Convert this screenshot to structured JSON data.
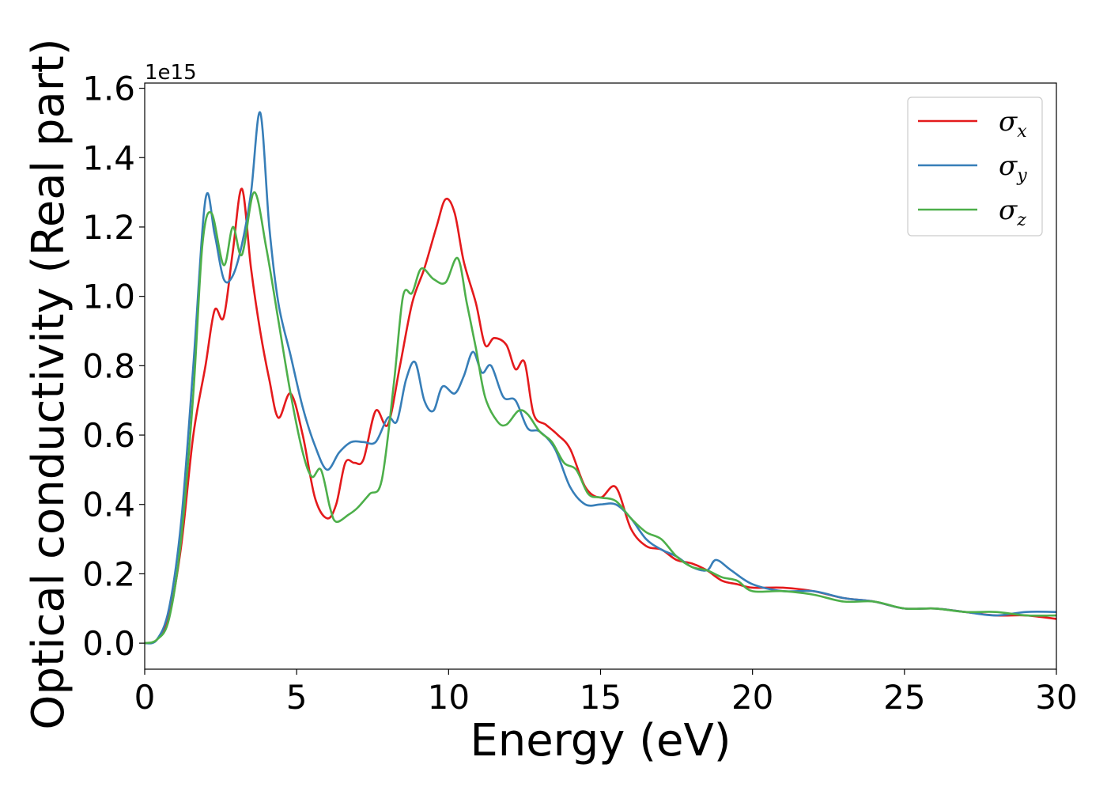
{
  "chart_data": {
    "type": "line",
    "xlabel": "Energy (eV)",
    "ylabel": "Optical conductivity (Real part)",
    "y_offset_text": "1e15",
    "xlim": [
      0,
      30
    ],
    "ylim": [
      -0.075,
      1.615
    ],
    "y_scale_factor": 1000000000000000.0,
    "grid": false,
    "legend_position": "top-right",
    "xticks": [
      0,
      5,
      10,
      15,
      20,
      25,
      30
    ],
    "xtick_labels": [
      "0",
      "5",
      "10",
      "15",
      "20",
      "25",
      "30"
    ],
    "yticks": [
      0.0,
      0.2,
      0.4,
      0.6,
      0.8,
      1.0,
      1.2,
      1.4,
      1.6
    ],
    "ytick_labels": [
      "0.0",
      "0.2",
      "0.4",
      "0.6",
      "0.8",
      "1.0",
      "1.2",
      "1.4",
      "1.6"
    ],
    "series": [
      {
        "name": "σ_x",
        "legend_base": "σ",
        "legend_sub": "x",
        "color": "#e41a1c",
        "points": [
          [
            0,
            0
          ],
          [
            0.4,
            0.01
          ],
          [
            0.8,
            0.08
          ],
          [
            1.2,
            0.28
          ],
          [
            1.6,
            0.6
          ],
          [
            2.0,
            0.8
          ],
          [
            2.3,
            0.96
          ],
          [
            2.6,
            0.94
          ],
          [
            2.9,
            1.13
          ],
          [
            3.2,
            1.31
          ],
          [
            3.5,
            1.08
          ],
          [
            3.8,
            0.9
          ],
          [
            4.1,
            0.76
          ],
          [
            4.4,
            0.65
          ],
          [
            4.8,
            0.72
          ],
          [
            5.2,
            0.6
          ],
          [
            5.6,
            0.42
          ],
          [
            6.0,
            0.36
          ],
          [
            6.3,
            0.4
          ],
          [
            6.6,
            0.52
          ],
          [
            6.9,
            0.52
          ],
          [
            7.2,
            0.53
          ],
          [
            7.6,
            0.67
          ],
          [
            8.0,
            0.63
          ],
          [
            8.4,
            0.8
          ],
          [
            8.8,
            0.98
          ],
          [
            9.2,
            1.08
          ],
          [
            9.6,
            1.2
          ],
          [
            9.9,
            1.28
          ],
          [
            10.2,
            1.24
          ],
          [
            10.5,
            1.1
          ],
          [
            10.9,
            0.98
          ],
          [
            11.2,
            0.86
          ],
          [
            11.5,
            0.88
          ],
          [
            11.9,
            0.86
          ],
          [
            12.2,
            0.79
          ],
          [
            12.5,
            0.81
          ],
          [
            12.8,
            0.66
          ],
          [
            13.2,
            0.63
          ],
          [
            13.6,
            0.6
          ],
          [
            14.0,
            0.56
          ],
          [
            14.5,
            0.45
          ],
          [
            15.0,
            0.42
          ],
          [
            15.5,
            0.45
          ],
          [
            16.0,
            0.33
          ],
          [
            16.5,
            0.28
          ],
          [
            17.0,
            0.27
          ],
          [
            17.5,
            0.24
          ],
          [
            18.0,
            0.23
          ],
          [
            18.5,
            0.21
          ],
          [
            19.0,
            0.18
          ],
          [
            19.5,
            0.17
          ],
          [
            20.0,
            0.16
          ],
          [
            21.0,
            0.16
          ],
          [
            22.0,
            0.15
          ],
          [
            23.0,
            0.13
          ],
          [
            24.0,
            0.12
          ],
          [
            25.0,
            0.1
          ],
          [
            26.0,
            0.1
          ],
          [
            27.0,
            0.09
          ],
          [
            28.0,
            0.08
          ],
          [
            29.0,
            0.08
          ],
          [
            30.0,
            0.07
          ]
        ]
      },
      {
        "name": "σ_y",
        "legend_base": "σ",
        "legend_sub": "y",
        "color": "#377eb8",
        "points": [
          [
            0,
            0
          ],
          [
            0.4,
            0.01
          ],
          [
            0.8,
            0.1
          ],
          [
            1.2,
            0.35
          ],
          [
            1.6,
            0.8
          ],
          [
            2.0,
            1.28
          ],
          [
            2.3,
            1.18
          ],
          [
            2.6,
            1.05
          ],
          [
            2.9,
            1.06
          ],
          [
            3.2,
            1.15
          ],
          [
            3.5,
            1.3
          ],
          [
            3.8,
            1.53
          ],
          [
            4.1,
            1.2
          ],
          [
            4.4,
            0.98
          ],
          [
            4.8,
            0.83
          ],
          [
            5.2,
            0.68
          ],
          [
            5.6,
            0.57
          ],
          [
            6.0,
            0.5
          ],
          [
            6.4,
            0.55
          ],
          [
            6.8,
            0.58
          ],
          [
            7.2,
            0.58
          ],
          [
            7.6,
            0.58
          ],
          [
            8.0,
            0.65
          ],
          [
            8.3,
            0.64
          ],
          [
            8.6,
            0.76
          ],
          [
            8.9,
            0.81
          ],
          [
            9.2,
            0.7
          ],
          [
            9.5,
            0.67
          ],
          [
            9.8,
            0.74
          ],
          [
            10.2,
            0.72
          ],
          [
            10.5,
            0.77
          ],
          [
            10.8,
            0.84
          ],
          [
            11.1,
            0.78
          ],
          [
            11.4,
            0.8
          ],
          [
            11.8,
            0.71
          ],
          [
            12.2,
            0.7
          ],
          [
            12.6,
            0.62
          ],
          [
            13.0,
            0.61
          ],
          [
            13.5,
            0.56
          ],
          [
            14.0,
            0.45
          ],
          [
            14.5,
            0.4
          ],
          [
            15.0,
            0.4
          ],
          [
            15.5,
            0.4
          ],
          [
            16.0,
            0.36
          ],
          [
            16.5,
            0.3
          ],
          [
            17.0,
            0.27
          ],
          [
            17.5,
            0.25
          ],
          [
            18.0,
            0.22
          ],
          [
            18.5,
            0.21
          ],
          [
            18.8,
            0.24
          ],
          [
            19.3,
            0.21
          ],
          [
            20.0,
            0.17
          ],
          [
            21.0,
            0.15
          ],
          [
            22.0,
            0.15
          ],
          [
            23.0,
            0.13
          ],
          [
            24.0,
            0.12
          ],
          [
            25.0,
            0.1
          ],
          [
            26.0,
            0.1
          ],
          [
            27.0,
            0.09
          ],
          [
            28.0,
            0.08
          ],
          [
            29.0,
            0.09
          ],
          [
            30.0,
            0.09
          ]
        ]
      },
      {
        "name": "σ_z",
        "legend_base": "σ",
        "legend_sub": "z",
        "color": "#4daf4a",
        "points": [
          [
            0,
            0
          ],
          [
            0.4,
            0.01
          ],
          [
            0.8,
            0.07
          ],
          [
            1.2,
            0.3
          ],
          [
            1.6,
            0.72
          ],
          [
            1.9,
            1.15
          ],
          [
            2.2,
            1.24
          ],
          [
            2.6,
            1.09
          ],
          [
            2.9,
            1.2
          ],
          [
            3.2,
            1.12
          ],
          [
            3.6,
            1.3
          ],
          [
            4.0,
            1.14
          ],
          [
            4.4,
            0.93
          ],
          [
            4.8,
            0.72
          ],
          [
            5.2,
            0.55
          ],
          [
            5.5,
            0.48
          ],
          [
            5.8,
            0.5
          ],
          [
            6.1,
            0.39
          ],
          [
            6.3,
            0.35
          ],
          [
            6.7,
            0.37
          ],
          [
            7.0,
            0.39
          ],
          [
            7.4,
            0.43
          ],
          [
            7.8,
            0.47
          ],
          [
            8.2,
            0.75
          ],
          [
            8.5,
            1.0
          ],
          [
            8.8,
            1.01
          ],
          [
            9.1,
            1.08
          ],
          [
            9.5,
            1.05
          ],
          [
            9.9,
            1.04
          ],
          [
            10.3,
            1.11
          ],
          [
            10.6,
            0.98
          ],
          [
            10.9,
            0.85
          ],
          [
            11.2,
            0.71
          ],
          [
            11.6,
            0.64
          ],
          [
            11.9,
            0.63
          ],
          [
            12.3,
            0.67
          ],
          [
            12.6,
            0.66
          ],
          [
            13.0,
            0.61
          ],
          [
            13.4,
            0.58
          ],
          [
            13.8,
            0.52
          ],
          [
            14.2,
            0.5
          ],
          [
            14.6,
            0.43
          ],
          [
            15.0,
            0.42
          ],
          [
            15.5,
            0.41
          ],
          [
            16.0,
            0.36
          ],
          [
            16.5,
            0.32
          ],
          [
            17.0,
            0.3
          ],
          [
            17.5,
            0.25
          ],
          [
            18.0,
            0.22
          ],
          [
            18.5,
            0.21
          ],
          [
            19.0,
            0.19
          ],
          [
            19.5,
            0.18
          ],
          [
            20.0,
            0.15
          ],
          [
            21.0,
            0.15
          ],
          [
            22.0,
            0.14
          ],
          [
            23.0,
            0.12
          ],
          [
            24.0,
            0.12
          ],
          [
            25.0,
            0.1
          ],
          [
            26.0,
            0.1
          ],
          [
            27.0,
            0.09
          ],
          [
            28.0,
            0.09
          ],
          [
            29.0,
            0.08
          ],
          [
            30.0,
            0.08
          ]
        ]
      }
    ]
  }
}
